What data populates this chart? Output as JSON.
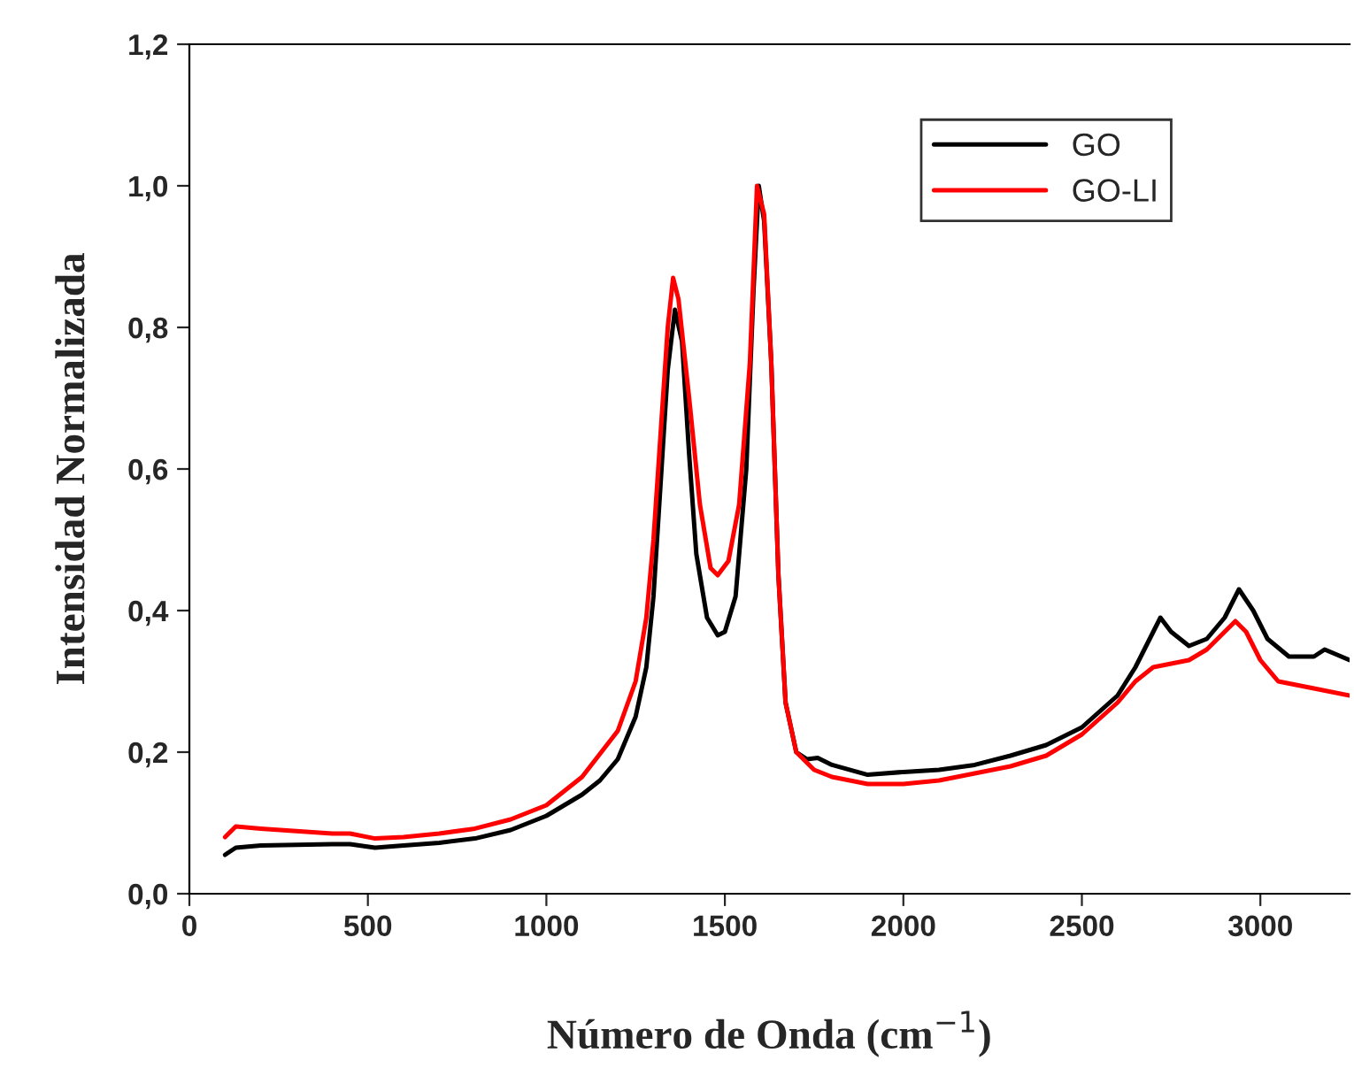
{
  "chart_data": {
    "type": "line",
    "xlabel": "Número de Onda (cm$^{−1}$)",
    "ylabel": "Intensidad Normalizada",
    "xlim": [
      0,
      3250
    ],
    "ylim": [
      0,
      1.2
    ],
    "xticks": [
      0,
      500,
      1000,
      1500,
      2000,
      2500,
      3000
    ],
    "yticks": [
      {
        "value": 0,
        "label": "0,0"
      },
      {
        "value": 0.2,
        "label": "0,2"
      },
      {
        "value": 0.4,
        "label": "0,4"
      },
      {
        "value": 0.6,
        "label": "0,6"
      },
      {
        "value": 0.8,
        "label": "0,8"
      },
      {
        "value": 1.0,
        "label": "1,0"
      },
      {
        "value": 1.2,
        "label": "1,2"
      }
    ],
    "legend": "top right",
    "grid": false,
    "marker": "none",
    "line_style": "solid",
    "series": [
      {
        "name": "GO",
        "color": "#000000",
        "x": [
          100,
          130,
          200,
          400,
          450,
          520,
          600,
          700,
          800,
          900,
          1000,
          1100,
          1150,
          1200,
          1250,
          1280,
          1300,
          1320,
          1340,
          1360,
          1380,
          1400,
          1420,
          1450,
          1480,
          1500,
          1530,
          1560,
          1580,
          1595,
          1610,
          1630,
          1650,
          1670,
          1700,
          1730,
          1760,
          1800,
          1900,
          2000,
          2100,
          2200,
          2300,
          2400,
          2500,
          2600,
          2650,
          2700,
          2720,
          2750,
          2800,
          2850,
          2900,
          2940,
          2980,
          3020,
          3080,
          3150,
          3180,
          3250
        ],
        "values": [
          0.055,
          0.065,
          0.068,
          0.07,
          0.07,
          0.065,
          0.068,
          0.072,
          0.078,
          0.09,
          0.11,
          0.14,
          0.16,
          0.19,
          0.25,
          0.32,
          0.42,
          0.58,
          0.74,
          0.825,
          0.78,
          0.62,
          0.48,
          0.39,
          0.365,
          0.37,
          0.42,
          0.6,
          0.85,
          1.0,
          0.95,
          0.75,
          0.45,
          0.27,
          0.2,
          0.19,
          0.192,
          0.182,
          0.168,
          0.172,
          0.175,
          0.182,
          0.195,
          0.21,
          0.235,
          0.28,
          0.32,
          0.37,
          0.39,
          0.37,
          0.35,
          0.36,
          0.39,
          0.43,
          0.4,
          0.36,
          0.335,
          0.335,
          0.345,
          0.33
        ]
      },
      {
        "name": "GO-LI",
        "color": "#ff0000",
        "x": [
          100,
          130,
          200,
          400,
          450,
          520,
          600,
          700,
          800,
          900,
          1000,
          1100,
          1200,
          1250,
          1280,
          1300,
          1320,
          1340,
          1355,
          1370,
          1400,
          1430,
          1460,
          1480,
          1510,
          1540,
          1570,
          1590,
          1610,
          1630,
          1650,
          1670,
          1700,
          1750,
          1800,
          1900,
          2000,
          2100,
          2200,
          2300,
          2400,
          2500,
          2600,
          2650,
          2700,
          2750,
          2800,
          2850,
          2900,
          2930,
          2960,
          3000,
          3050,
          3150,
          3250
        ],
        "values": [
          0.08,
          0.095,
          0.092,
          0.085,
          0.085,
          0.078,
          0.08,
          0.085,
          0.092,
          0.105,
          0.125,
          0.165,
          0.23,
          0.3,
          0.39,
          0.5,
          0.65,
          0.8,
          0.87,
          0.84,
          0.7,
          0.55,
          0.46,
          0.45,
          0.47,
          0.55,
          0.75,
          1.0,
          0.96,
          0.75,
          0.45,
          0.27,
          0.2,
          0.175,
          0.165,
          0.155,
          0.155,
          0.16,
          0.17,
          0.18,
          0.195,
          0.225,
          0.27,
          0.3,
          0.32,
          0.325,
          0.33,
          0.345,
          0.37,
          0.385,
          0.37,
          0.33,
          0.3,
          0.29,
          0.28
        ]
      }
    ]
  }
}
